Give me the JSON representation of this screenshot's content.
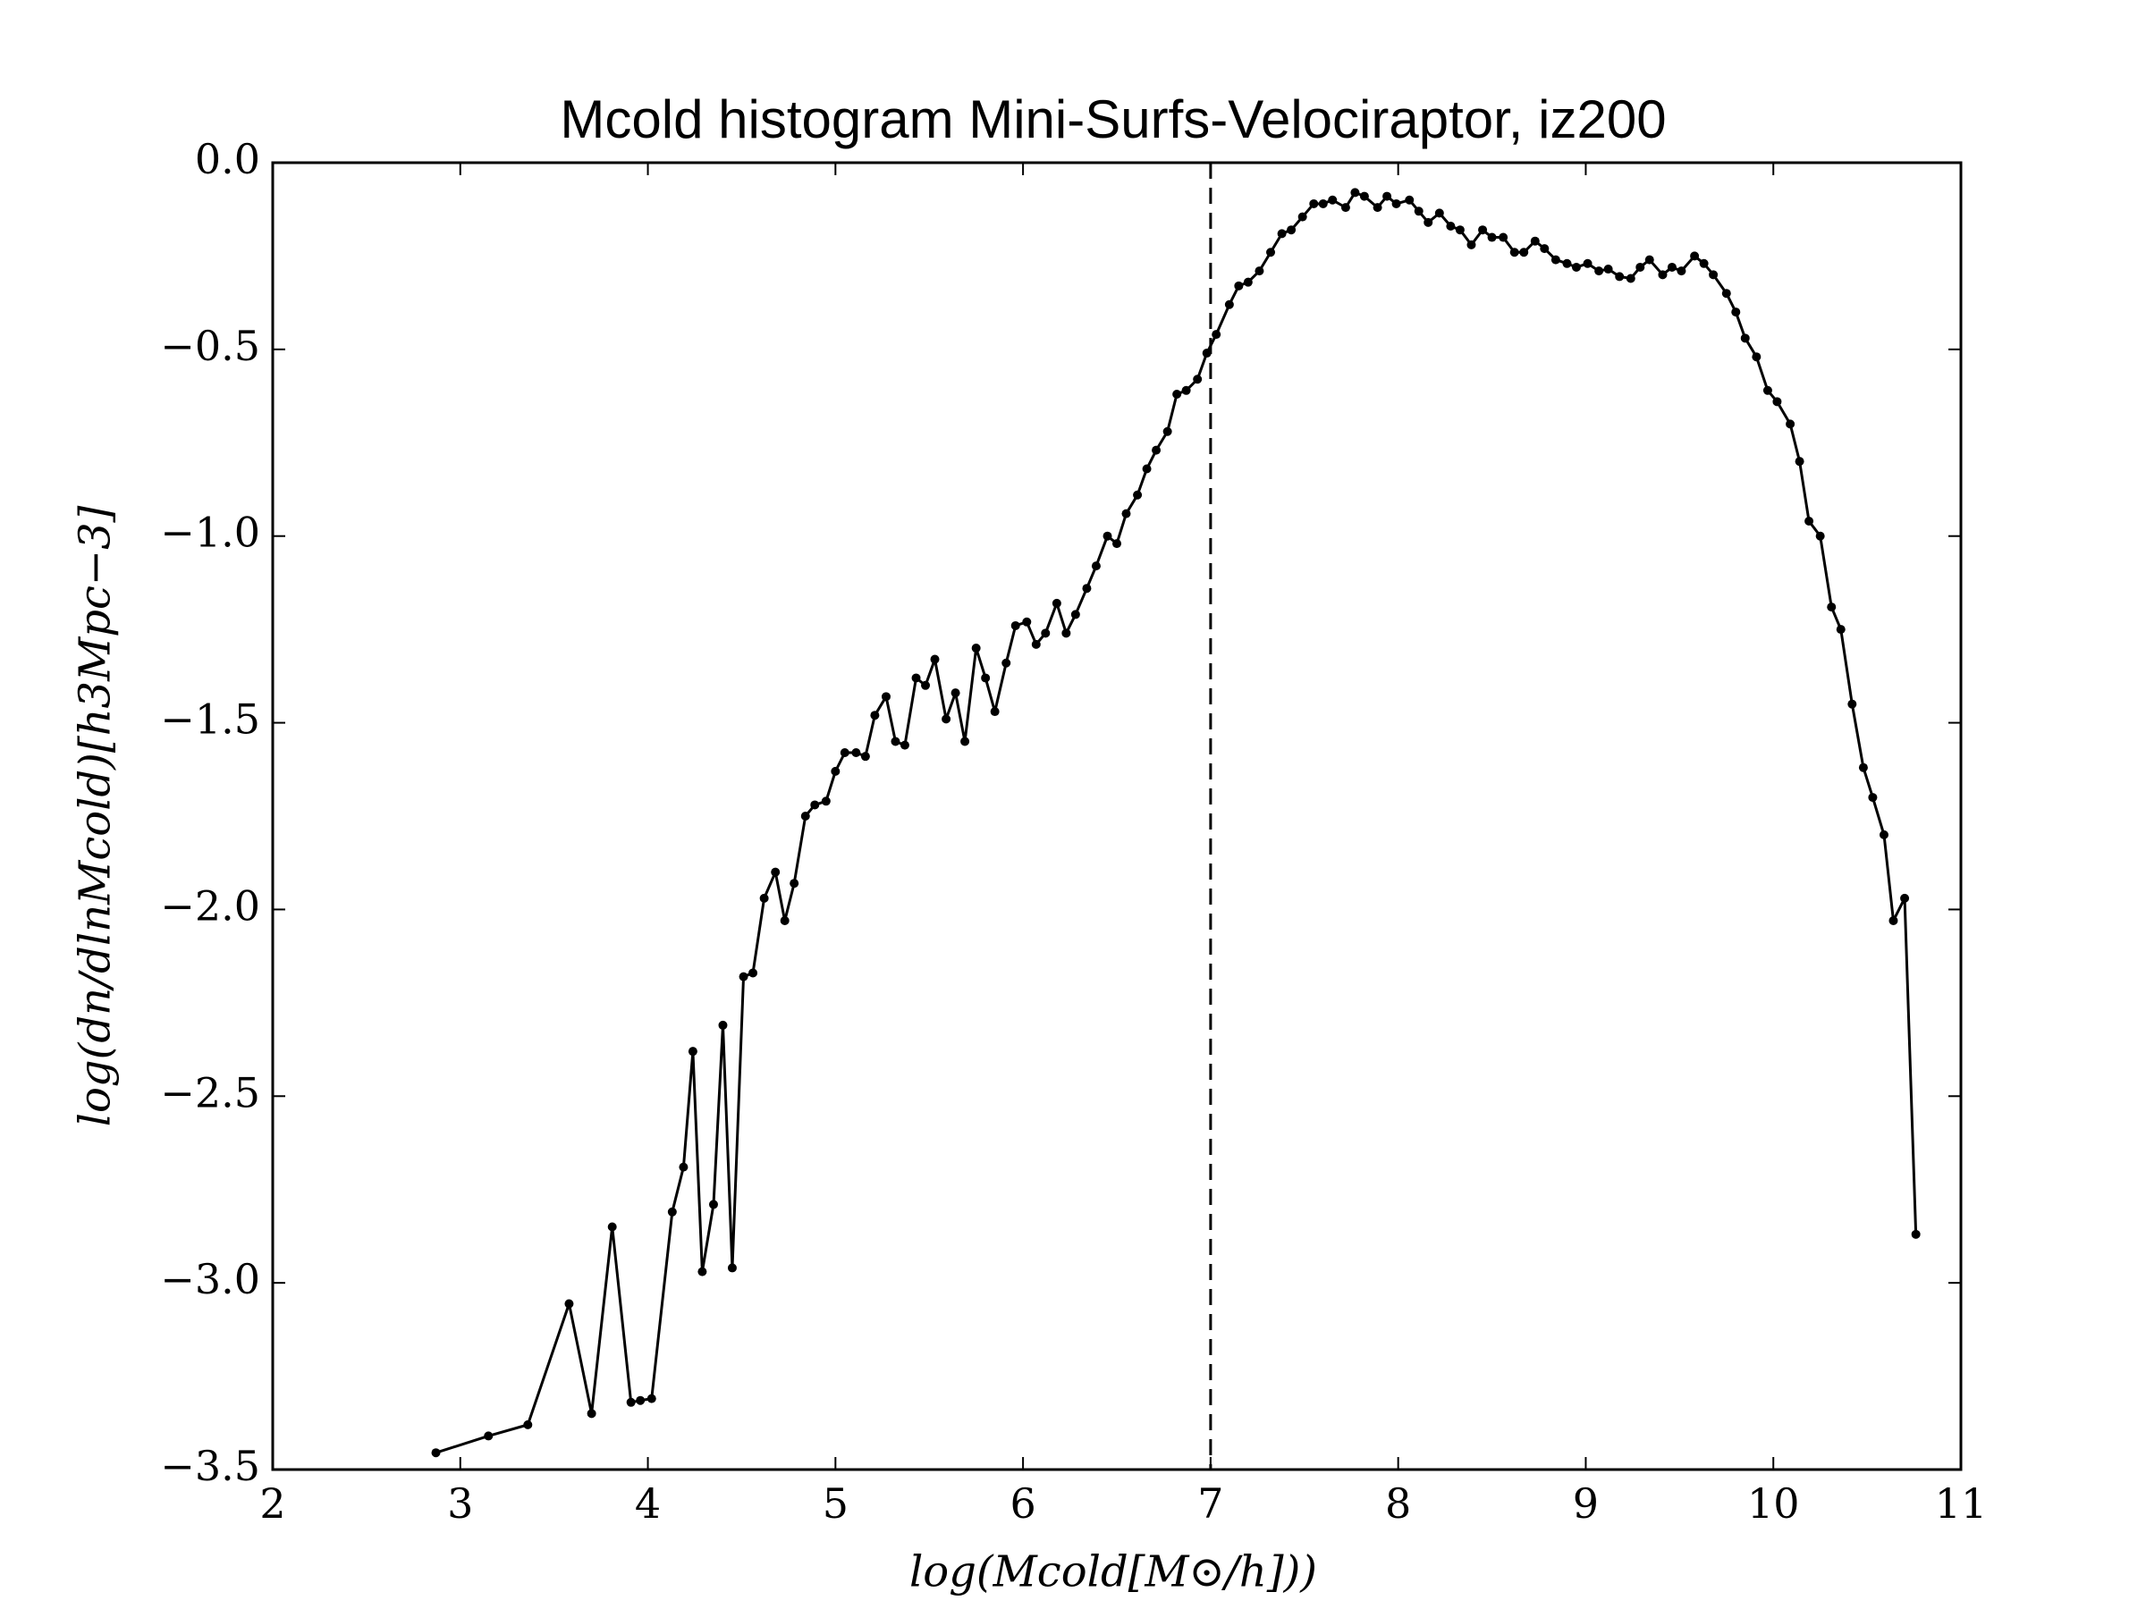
{
  "chart_data": {
    "type": "line",
    "title": "Mcold histogram Mini-Surfs-Velociraptor, iz200",
    "x_label": "log(Mcold[M⊙/h]))",
    "y_label": "log(dn/dlnMcold)[h3Mpc−3]",
    "x": [
      2.87,
      3.15,
      3.36,
      3.58,
      3.7,
      3.81,
      3.91,
      3.96,
      4.02,
      4.13,
      4.19,
      4.24,
      4.29,
      4.35,
      4.4,
      4.45,
      4.51,
      4.56,
      4.62,
      4.68,
      4.73,
      4.78,
      4.84,
      4.89,
      4.95,
      5.0,
      5.05,
      5.11,
      5.16,
      5.21,
      5.27,
      5.32,
      5.37,
      5.43,
      5.48,
      5.53,
      5.59,
      5.64,
      5.69,
      5.75,
      5.8,
      5.85,
      5.91,
      5.96,
      6.02,
      6.07,
      6.12,
      6.18,
      6.23,
      6.28,
      6.34,
      6.39,
      6.45,
      6.5,
      6.55,
      6.61,
      6.66,
      6.71,
      6.77,
      6.82,
      6.87,
      6.93,
      6.98,
      7.03,
      7.1,
      7.15,
      7.2,
      7.26,
      7.32,
      7.38,
      7.43,
      7.49,
      7.55,
      7.6,
      7.65,
      7.72,
      7.77,
      7.82,
      7.89,
      7.94,
      7.99,
      8.06,
      8.11,
      8.16,
      8.22,
      8.28,
      8.33,
      8.39,
      8.45,
      8.5,
      8.56,
      8.62,
      8.67,
      8.73,
      8.78,
      8.84,
      8.9,
      8.95,
      9.01,
      9.07,
      9.12,
      9.18,
      9.24,
      9.29,
      9.34,
      9.41,
      9.46,
      9.51,
      9.58,
      9.63,
      9.68,
      9.75,
      9.8,
      9.85,
      9.91,
      9.97,
      10.02,
      10.09,
      10.14,
      10.19,
      10.25,
      10.31,
      10.36,
      10.42,
      10.48,
      10.53,
      10.59,
      10.64,
      10.7,
      10.76
    ],
    "series": [
      {
        "color": "#000000",
        "values": [
          -3.455,
          -3.41,
          -3.38,
          -3.056,
          -3.35,
          -2.85,
          -3.32,
          -3.315,
          -3.31,
          -2.81,
          -2.69,
          -2.38,
          -2.97,
          -2.79,
          -2.31,
          -2.96,
          -2.18,
          -2.17,
          -1.97,
          -1.9,
          -2.03,
          -1.93,
          -1.75,
          -1.72,
          -1.71,
          -1.63,
          -1.58,
          -1.58,
          -1.59,
          -1.48,
          -1.43,
          -1.55,
          -1.56,
          -1.38,
          -1.4,
          -1.33,
          -1.49,
          -1.42,
          -1.55,
          -1.3,
          -1.38,
          -1.47,
          -1.34,
          -1.24,
          -1.23,
          -1.29,
          -1.26,
          -1.18,
          -1.26,
          -1.21,
          -1.14,
          -1.08,
          -1.0,
          -1.02,
          -0.94,
          -0.89,
          -0.82,
          -0.77,
          -0.72,
          -0.62,
          -0.61,
          -0.58,
          -0.51,
          -0.46,
          -0.38,
          -0.33,
          -0.32,
          -0.29,
          -0.24,
          -0.19,
          -0.18,
          -0.145,
          -0.11,
          -0.11,
          -0.1,
          -0.12,
          -0.08,
          -0.09,
          -0.12,
          -0.09,
          -0.11,
          -0.1,
          -0.13,
          -0.16,
          -0.135,
          -0.17,
          -0.18,
          -0.22,
          -0.18,
          -0.2,
          -0.2,
          -0.24,
          -0.24,
          -0.21,
          -0.23,
          -0.26,
          -0.27,
          -0.28,
          -0.27,
          -0.29,
          -0.285,
          -0.305,
          -0.31,
          -0.28,
          -0.26,
          -0.3,
          -0.28,
          -0.29,
          -0.25,
          -0.27,
          -0.3,
          -0.35,
          -0.4,
          -0.47,
          -0.52,
          -0.61,
          -0.64,
          -0.7,
          -0.8,
          -0.96,
          -1.0,
          -1.19,
          -1.25,
          -1.45,
          -1.62,
          -1.7,
          -1.8,
          -2.03,
          -1.97,
          -2.87
        ]
      }
    ],
    "vline_x": 7,
    "xlim": [
      2,
      11
    ],
    "xticks": [
      2,
      3,
      4,
      5,
      6,
      7,
      8,
      9,
      10,
      11
    ],
    "ylim": [
      -3.5,
      0.0
    ],
    "yticks": [
      {
        "value": 0.0,
        "label": "0.0"
      },
      {
        "value": -0.5,
        "label": "−0.5"
      },
      {
        "value": -1.0,
        "label": "−1.0"
      },
      {
        "value": -1.5,
        "label": "−1.5"
      },
      {
        "value": -2.0,
        "label": "−2.0"
      },
      {
        "value": -2.5,
        "label": "−2.5"
      },
      {
        "value": -3.0,
        "label": "−3.0"
      },
      {
        "value": -3.5,
        "label": "−3.5"
      }
    ]
  }
}
